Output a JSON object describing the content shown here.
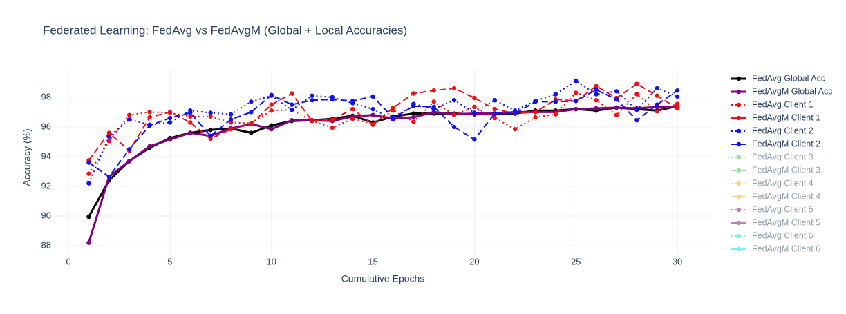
{
  "chart_data": {
    "type": "line",
    "title": "Federated Learning: FedAvg vs FedAvgM (Global + Local Accuracies)",
    "x_label": "Cumulative Epochs",
    "y_label": "Accuracy (%)",
    "x": [
      1,
      2,
      3,
      4,
      5,
      6,
      7,
      8,
      9,
      10,
      11,
      12,
      13,
      14,
      15,
      16,
      17,
      18,
      19,
      20,
      21,
      22,
      23,
      24,
      25,
      26,
      27,
      28,
      29,
      30
    ],
    "xlim": [
      -0.65,
      31.7
    ],
    "xticks": [
      0,
      5,
      10,
      15,
      20,
      25,
      30
    ],
    "ylim": [
      87.35,
      99.9
    ],
    "yticks": [
      88,
      90,
      92,
      94,
      96,
      98
    ],
    "grid": true,
    "legend": "right",
    "series": [
      {
        "name": "FedAvg Global Acc",
        "color": "#000000",
        "dash": "solid",
        "width": 3,
        "values": [
          89.95,
          92.4,
          93.7,
          94.6,
          95.25,
          95.6,
          95.8,
          95.9,
          95.6,
          96.1,
          96.4,
          96.45,
          96.55,
          96.75,
          96.3,
          96.7,
          96.9,
          96.9,
          96.9,
          96.85,
          96.85,
          96.9,
          97.1,
          97.1,
          97.2,
          97.1,
          97.3,
          97.2,
          97.1,
          97.4
        ]
      },
      {
        "name": "FedAvgM Global Acc",
        "color": "#800080",
        "dash": "solid",
        "width": 3,
        "values": [
          88.2,
          92.65,
          93.7,
          94.7,
          95.15,
          95.6,
          95.4,
          95.9,
          96.2,
          95.85,
          96.45,
          96.45,
          96.4,
          96.7,
          96.8,
          96.55,
          96.65,
          97.0,
          96.85,
          96.9,
          96.9,
          97.0,
          97.0,
          97.0,
          97.2,
          97.25,
          97.3,
          97.25,
          97.35,
          97.35
        ]
      },
      {
        "name": "FedAvg Client 1",
        "color": "#ee1111",
        "dash": "dot",
        "width": 2,
        "values": [
          92.85,
          95.05,
          96.8,
          97.0,
          96.95,
          96.7,
          96.7,
          96.3,
          96.25,
          97.1,
          97.15,
          96.4,
          95.95,
          96.55,
          96.2,
          97.1,
          96.35,
          97.7,
          96.8,
          97.35,
          96.6,
          95.85,
          96.65,
          96.85,
          98.3,
          97.8,
          96.8,
          98.2,
          97.05,
          97.55
        ]
      },
      {
        "name": "FedAvgM Client 1",
        "color": "#ee1111",
        "dash": "dash",
        "width": 2,
        "values": [
          93.75,
          95.6,
          94.4,
          96.65,
          97.0,
          96.3,
          95.2,
          95.85,
          96.2,
          97.5,
          98.25,
          96.4,
          96.5,
          97.2,
          96.15,
          97.3,
          98.25,
          98.45,
          98.6,
          97.95,
          97.2,
          96.9,
          97.0,
          97.85,
          97.75,
          98.75,
          97.95,
          98.9,
          98.1,
          97.25
        ]
      },
      {
        "name": "FedAvg Client 2",
        "color": "#1111ee",
        "dash": "dot",
        "width": 2,
        "values": [
          92.2,
          95.35,
          96.5,
          96.15,
          96.3,
          97.1,
          96.95,
          96.85,
          97.7,
          98.1,
          97.15,
          98.1,
          98.0,
          97.6,
          97.2,
          96.5,
          97.55,
          97.2,
          97.8,
          96.95,
          97.8,
          97.1,
          97.75,
          98.2,
          99.1,
          98.2,
          98.4,
          97.15,
          98.6,
          98.05
        ]
      },
      {
        "name": "FedAvgM Client 2",
        "color": "#1111ee",
        "dash": "dash",
        "width": 2,
        "values": [
          93.6,
          92.65,
          94.5,
          96.1,
          96.6,
          96.95,
          95.4,
          96.5,
          97.0,
          98.15,
          97.5,
          97.8,
          97.85,
          97.75,
          98.05,
          96.6,
          97.4,
          97.35,
          96.0,
          95.15,
          96.9,
          96.9,
          97.7,
          97.7,
          97.75,
          98.5,
          97.85,
          96.45,
          97.5,
          98.45
        ]
      },
      {
        "name": "FedAvg Client 3",
        "color": "#32cd32",
        "dash": "dot",
        "width": 2,
        "hidden": true
      },
      {
        "name": "FedAvgM Client 3",
        "color": "#32cd32",
        "dash": "dash",
        "width": 2,
        "hidden": true
      },
      {
        "name": "FedAvg Client 4",
        "color": "#ffa500",
        "dash": "dot",
        "width": 2,
        "hidden": true
      },
      {
        "name": "FedAvgM Client 4",
        "color": "#ffa500",
        "dash": "dash",
        "width": 2,
        "hidden": true
      },
      {
        "name": "FedAvg Client 5",
        "color": "#800080",
        "dash": "dot",
        "width": 2,
        "hidden": true
      },
      {
        "name": "FedAvgM Client 5",
        "color": "#800080",
        "dash": "dash",
        "width": 2,
        "hidden": true
      },
      {
        "name": "FedAvg Client 6",
        "color": "#00e0e0",
        "dash": "dot",
        "width": 2,
        "hidden": true
      },
      {
        "name": "FedAvgM Client 6",
        "color": "#00e0e0",
        "dash": "dash",
        "width": 2,
        "hidden": true
      }
    ]
  }
}
